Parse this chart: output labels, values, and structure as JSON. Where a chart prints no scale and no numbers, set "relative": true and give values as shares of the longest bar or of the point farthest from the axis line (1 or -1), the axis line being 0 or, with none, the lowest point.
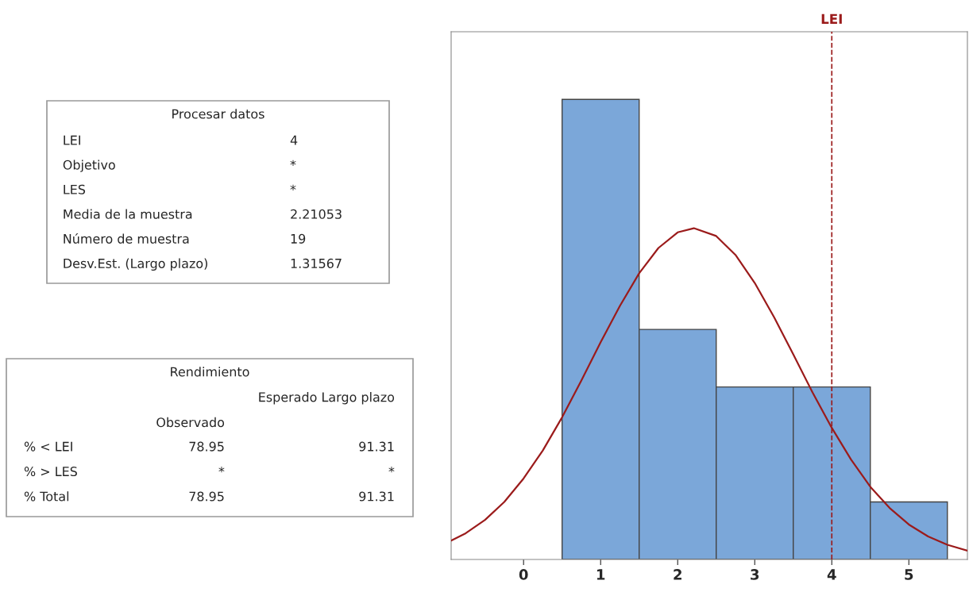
{
  "chart_data": [
    {
      "type": "other",
      "title": "Procesar datos",
      "annotations": [
        "LEI",
        "4",
        "Objetivo",
        "*",
        "LES",
        "*",
        "Media de la muestra",
        "2.21053",
        "Número de muestra",
        "19",
        "Desv.Est. (Largo plazo)",
        "1.31567"
      ]
    },
    {
      "type": "other",
      "title": "Rendimiento",
      "annotations": [
        "Observado",
        "Esperado Largo plazo",
        "% < LEI",
        "78.95",
        "91.31",
        "% > LES",
        "*",
        "*",
        "% Total",
        "78.95",
        "91.31"
      ]
    },
    {
      "type": "histogram",
      "relative": true,
      "bins": [
        0.5,
        1.5,
        2.5,
        3.5,
        4.5,
        5.5
      ],
      "values": [
        1,
        0.5,
        0.375,
        0.375,
        0.125
      ],
      "color": "#7ba7d9",
      "series": [
        {
          "type": "line",
          "color": "#9b1b1b",
          "x": [
            -0.94,
            -0.75,
            -0.5,
            -0.25,
            0,
            0.25,
            0.5,
            0.75,
            1,
            1.25,
            1.5,
            1.75,
            2,
            2.21,
            2.5,
            2.75,
            3,
            3.25,
            3.5,
            3.75,
            4,
            4.25,
            4.5,
            4.75,
            5,
            5.25,
            5.5,
            5.76
          ],
          "values": [
            0.041,
            0.057,
            0.086,
            0.125,
            0.176,
            0.237,
            0.309,
            0.389,
            0.472,
            0.551,
            0.622,
            0.677,
            0.711,
            0.72,
            0.703,
            0.662,
            0.601,
            0.527,
            0.446,
            0.363,
            0.286,
            0.217,
            0.158,
            0.112,
            0.076,
            0.05,
            0.032,
            0.019
          ]
        }
      ],
      "xlim": [
        -0.94,
        5.76
      ],
      "xticks": [
        0,
        1,
        2,
        3,
        4,
        5
      ],
      "ref_lines": [
        {
          "axis": "x",
          "value": 4,
          "label": "LEI",
          "color": "#9b1b1b",
          "line_style": "dashed"
        }
      ],
      "grid": false,
      "legend": false
    }
  ]
}
